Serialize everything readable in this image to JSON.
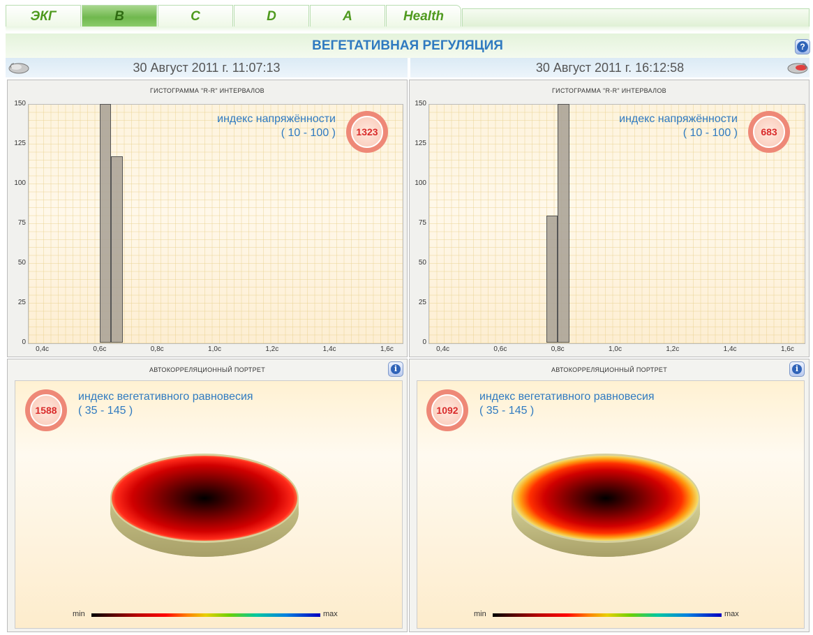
{
  "tabs": [
    {
      "label": "ЭКГ"
    },
    {
      "label": "B"
    },
    {
      "label": "C"
    },
    {
      "label": "D"
    },
    {
      "label": "A"
    },
    {
      "label": "Health"
    }
  ],
  "title": "ВЕГЕТАТИВНАЯ РЕГУЛЯЦИЯ",
  "help_label": "?",
  "left": {
    "date": "30 Август 2011 г. 11:07:13",
    "histogram": {
      "title": "ГИСТОГРАММА \"R-R\" ИНТЕРВАЛОВ",
      "index_label": "индекс напряжённости",
      "index_range": "( 10 - 100 )",
      "index_value": "1323",
      "chart_data": {
        "type": "bar",
        "x_unit": "с",
        "xlim": [
          0.35,
          1.65
        ],
        "ylim": [
          0,
          150
        ],
        "bars": [
          {
            "x0": 0.6,
            "x1": 0.64,
            "value": 150
          },
          {
            "x0": 0.64,
            "x1": 0.68,
            "value": 117
          }
        ]
      }
    },
    "portrait": {
      "title": "АВТОКОРРЕЛЯЦИОННЫЙ ПОРТРЕТ",
      "index_label": "индекс вегетативного равновесия",
      "index_range": "( 35 - 145 )",
      "index_value": "1588",
      "legend_min": "min",
      "legend_max": "max"
    }
  },
  "right": {
    "date": "30 Август 2011 г. 16:12:58",
    "histogram": {
      "title": "ГИСТОГРАММА \"R-R\" ИНТЕРВАЛОВ",
      "index_label": "индекс напряжённости",
      "index_range": "( 10 - 100 )",
      "index_value": "683",
      "chart_data": {
        "type": "bar",
        "x_unit": "с",
        "xlim": [
          0.35,
          1.65
        ],
        "ylim": [
          0,
          150
        ],
        "bars": [
          {
            "x0": 0.76,
            "x1": 0.8,
            "value": 80
          },
          {
            "x0": 0.8,
            "x1": 0.84,
            "value": 150
          }
        ]
      }
    },
    "portrait": {
      "title": "АВТОКОРРЕЛЯЦИОННЫЙ ПОРТРЕТ",
      "index_label": "индекс вегетативного равновесия",
      "index_range": "( 35 - 145 )",
      "index_value": "1092",
      "legend_min": "min",
      "legend_max": "max"
    }
  },
  "axis": {
    "y_ticks": [
      "150",
      "125",
      "100",
      "75",
      "50",
      "25",
      "0"
    ],
    "x_ticks": [
      "0,4с",
      "0,6с",
      "0,8с",
      "1,0с",
      "1,2с",
      "1,4с",
      "1,6с"
    ]
  }
}
